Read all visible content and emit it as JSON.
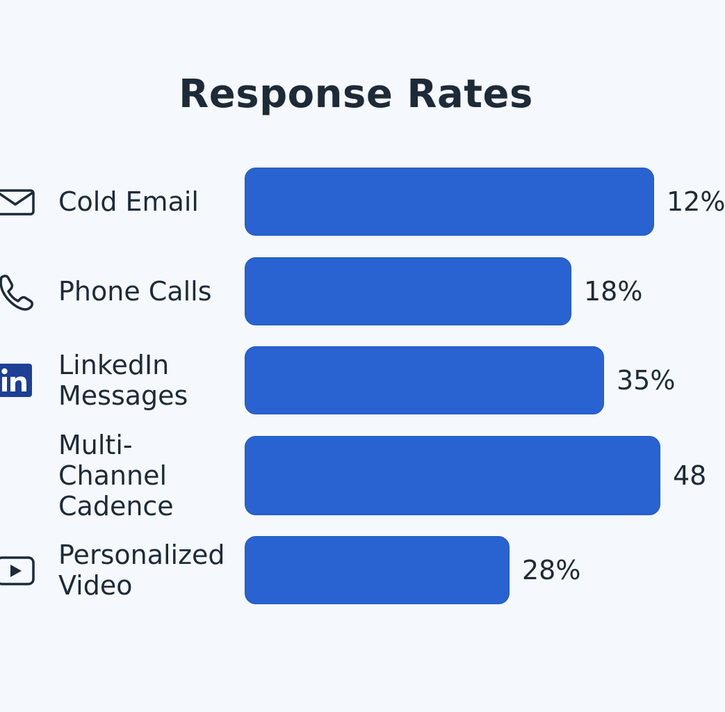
{
  "colors": {
    "background": "#f5f8fc",
    "bar": "#2863d1",
    "text": "#1d2a38",
    "linkedin": "#1d3f95"
  },
  "chart_data": {
    "type": "bar",
    "orientation": "horizontal",
    "title": "Response Rates",
    "categories": [
      "Cold Email",
      "Phone Calls",
      "LinkedIn\nMessages",
      "Multi-\nChannel\nCadence",
      "Personalized\nVideo"
    ],
    "values": [
      12,
      18,
      35,
      48,
      28
    ],
    "value_labels": [
      "12%",
      "18%",
      "35%",
      "48",
      "28%"
    ],
    "icons": [
      "envelope-icon",
      "phone-icon",
      "linkedin-icon",
      "",
      "play-video-icon"
    ],
    "legend": "none",
    "grid": false
  }
}
